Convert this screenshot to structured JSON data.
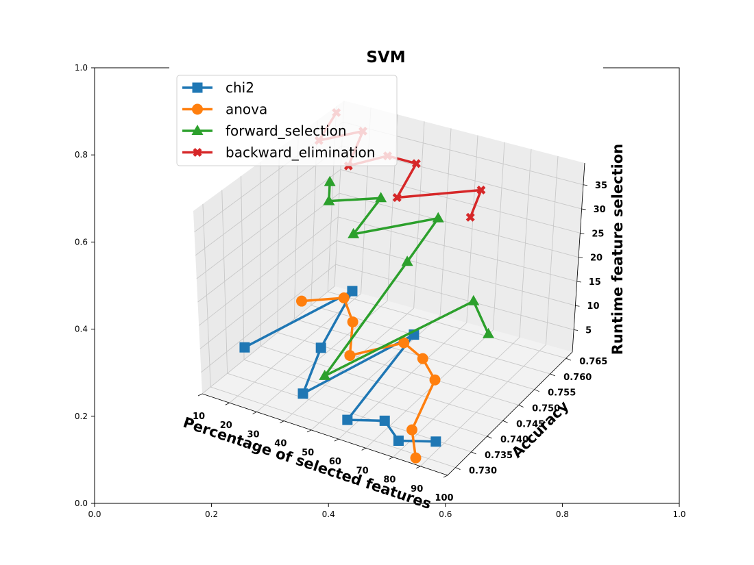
{
  "chart_data": {
    "type": "line",
    "title": "SVM",
    "xlabel": "Percentage of selected features",
    "ylabel": "Accuracy",
    "zlabel": "Runtime feature selection",
    "x_ticks": [
      "10",
      "20",
      "30",
      "40",
      "50",
      "60",
      "70",
      "80",
      "90",
      "100"
    ],
    "y_ticks": [
      "0.730",
      "0.735",
      "0.740",
      "0.745",
      "0.750",
      "0.755",
      "0.760",
      "0.765"
    ],
    "z_ticks": [
      "5",
      "10",
      "15",
      "20",
      "25",
      "30",
      "35"
    ],
    "background_axes": {
      "x_ticks": [
        "0.0",
        "0.2",
        "0.4",
        "0.6",
        "0.8",
        "1.0"
      ],
      "y_ticks": [
        "0.0",
        "0.2",
        "0.4",
        "0.6",
        "0.8",
        "1.0"
      ]
    },
    "grid": true,
    "legend_position": "upper-left",
    "series": [
      {
        "name": "chi2",
        "color": "#1f77b4",
        "marker": "square",
        "points": [
          {
            "x": 10,
            "y": 0.74,
            "z": 3
          },
          {
            "x": 20,
            "y": 0.764,
            "z": 3
          },
          {
            "x": 30,
            "y": 0.7465,
            "z": 3
          },
          {
            "x": 40,
            "y": 0.733,
            "z": 3
          },
          {
            "x": 50,
            "y": 0.758,
            "z": 3
          },
          {
            "x": 60,
            "y": 0.73,
            "z": 3
          },
          {
            "x": 70,
            "y": 0.733,
            "z": 3
          },
          {
            "x": 80,
            "y": 0.729,
            "z": 3
          },
          {
            "x": 90,
            "y": 0.732,
            "z": 3
          }
        ]
      },
      {
        "name": "anova",
        "color": "#ff7f0e",
        "marker": "circle",
        "points": [
          {
            "x": 10,
            "y": 0.757,
            "z": 3
          },
          {
            "x": 20,
            "y": 0.7615,
            "z": 3
          },
          {
            "x": 30,
            "y": 0.756,
            "z": 3
          },
          {
            "x": 40,
            "y": 0.747,
            "z": 3
          },
          {
            "x": 50,
            "y": 0.755,
            "z": 3
          },
          {
            "x": 60,
            "y": 0.7525,
            "z": 3
          },
          {
            "x": 70,
            "y": 0.748,
            "z": 3
          },
          {
            "x": 80,
            "y": 0.733,
            "z": 3
          },
          {
            "x": 90,
            "y": 0.726,
            "z": 3
          }
        ]
      },
      {
        "name": "forward_selection",
        "color": "#2ca02c",
        "marker": "triangle",
        "points": [
          {
            "x": 10,
            "y": 0.764,
            "z": 24
          },
          {
            "x": 10,
            "y": 0.764,
            "z": 20
          },
          {
            "x": 30,
            "y": 0.763,
            "z": 25
          },
          {
            "x": 30,
            "y": 0.755,
            "z": 22
          },
          {
            "x": 50,
            "y": 0.764,
            "z": 24
          },
          {
            "x": 50,
            "y": 0.755,
            "z": 20
          },
          {
            "x": 40,
            "y": 0.7395,
            "z": 3
          },
          {
            "x": 80,
            "y": 0.7505,
            "z": 20
          },
          {
            "x": 90,
            "y": 0.747,
            "z": 17
          }
        ]
      },
      {
        "name": "backward_elimination",
        "color": "#d62728",
        "marker": "x",
        "points": [
          {
            "x": 10,
            "y": 0.765,
            "z": 38
          },
          {
            "x": 10,
            "y": 0.76,
            "z": 35
          },
          {
            "x": 20,
            "y": 0.765,
            "z": 36
          },
          {
            "x": 20,
            "y": 0.761,
            "z": 31
          },
          {
            "x": 30,
            "y": 0.7645,
            "z": 33
          },
          {
            "x": 40,
            "y": 0.765,
            "z": 33
          },
          {
            "x": 40,
            "y": 0.7595,
            "z": 29
          },
          {
            "x": 70,
            "y": 0.76,
            "z": 36
          },
          {
            "x": 70,
            "y": 0.757,
            "z": 32
          }
        ]
      }
    ]
  }
}
